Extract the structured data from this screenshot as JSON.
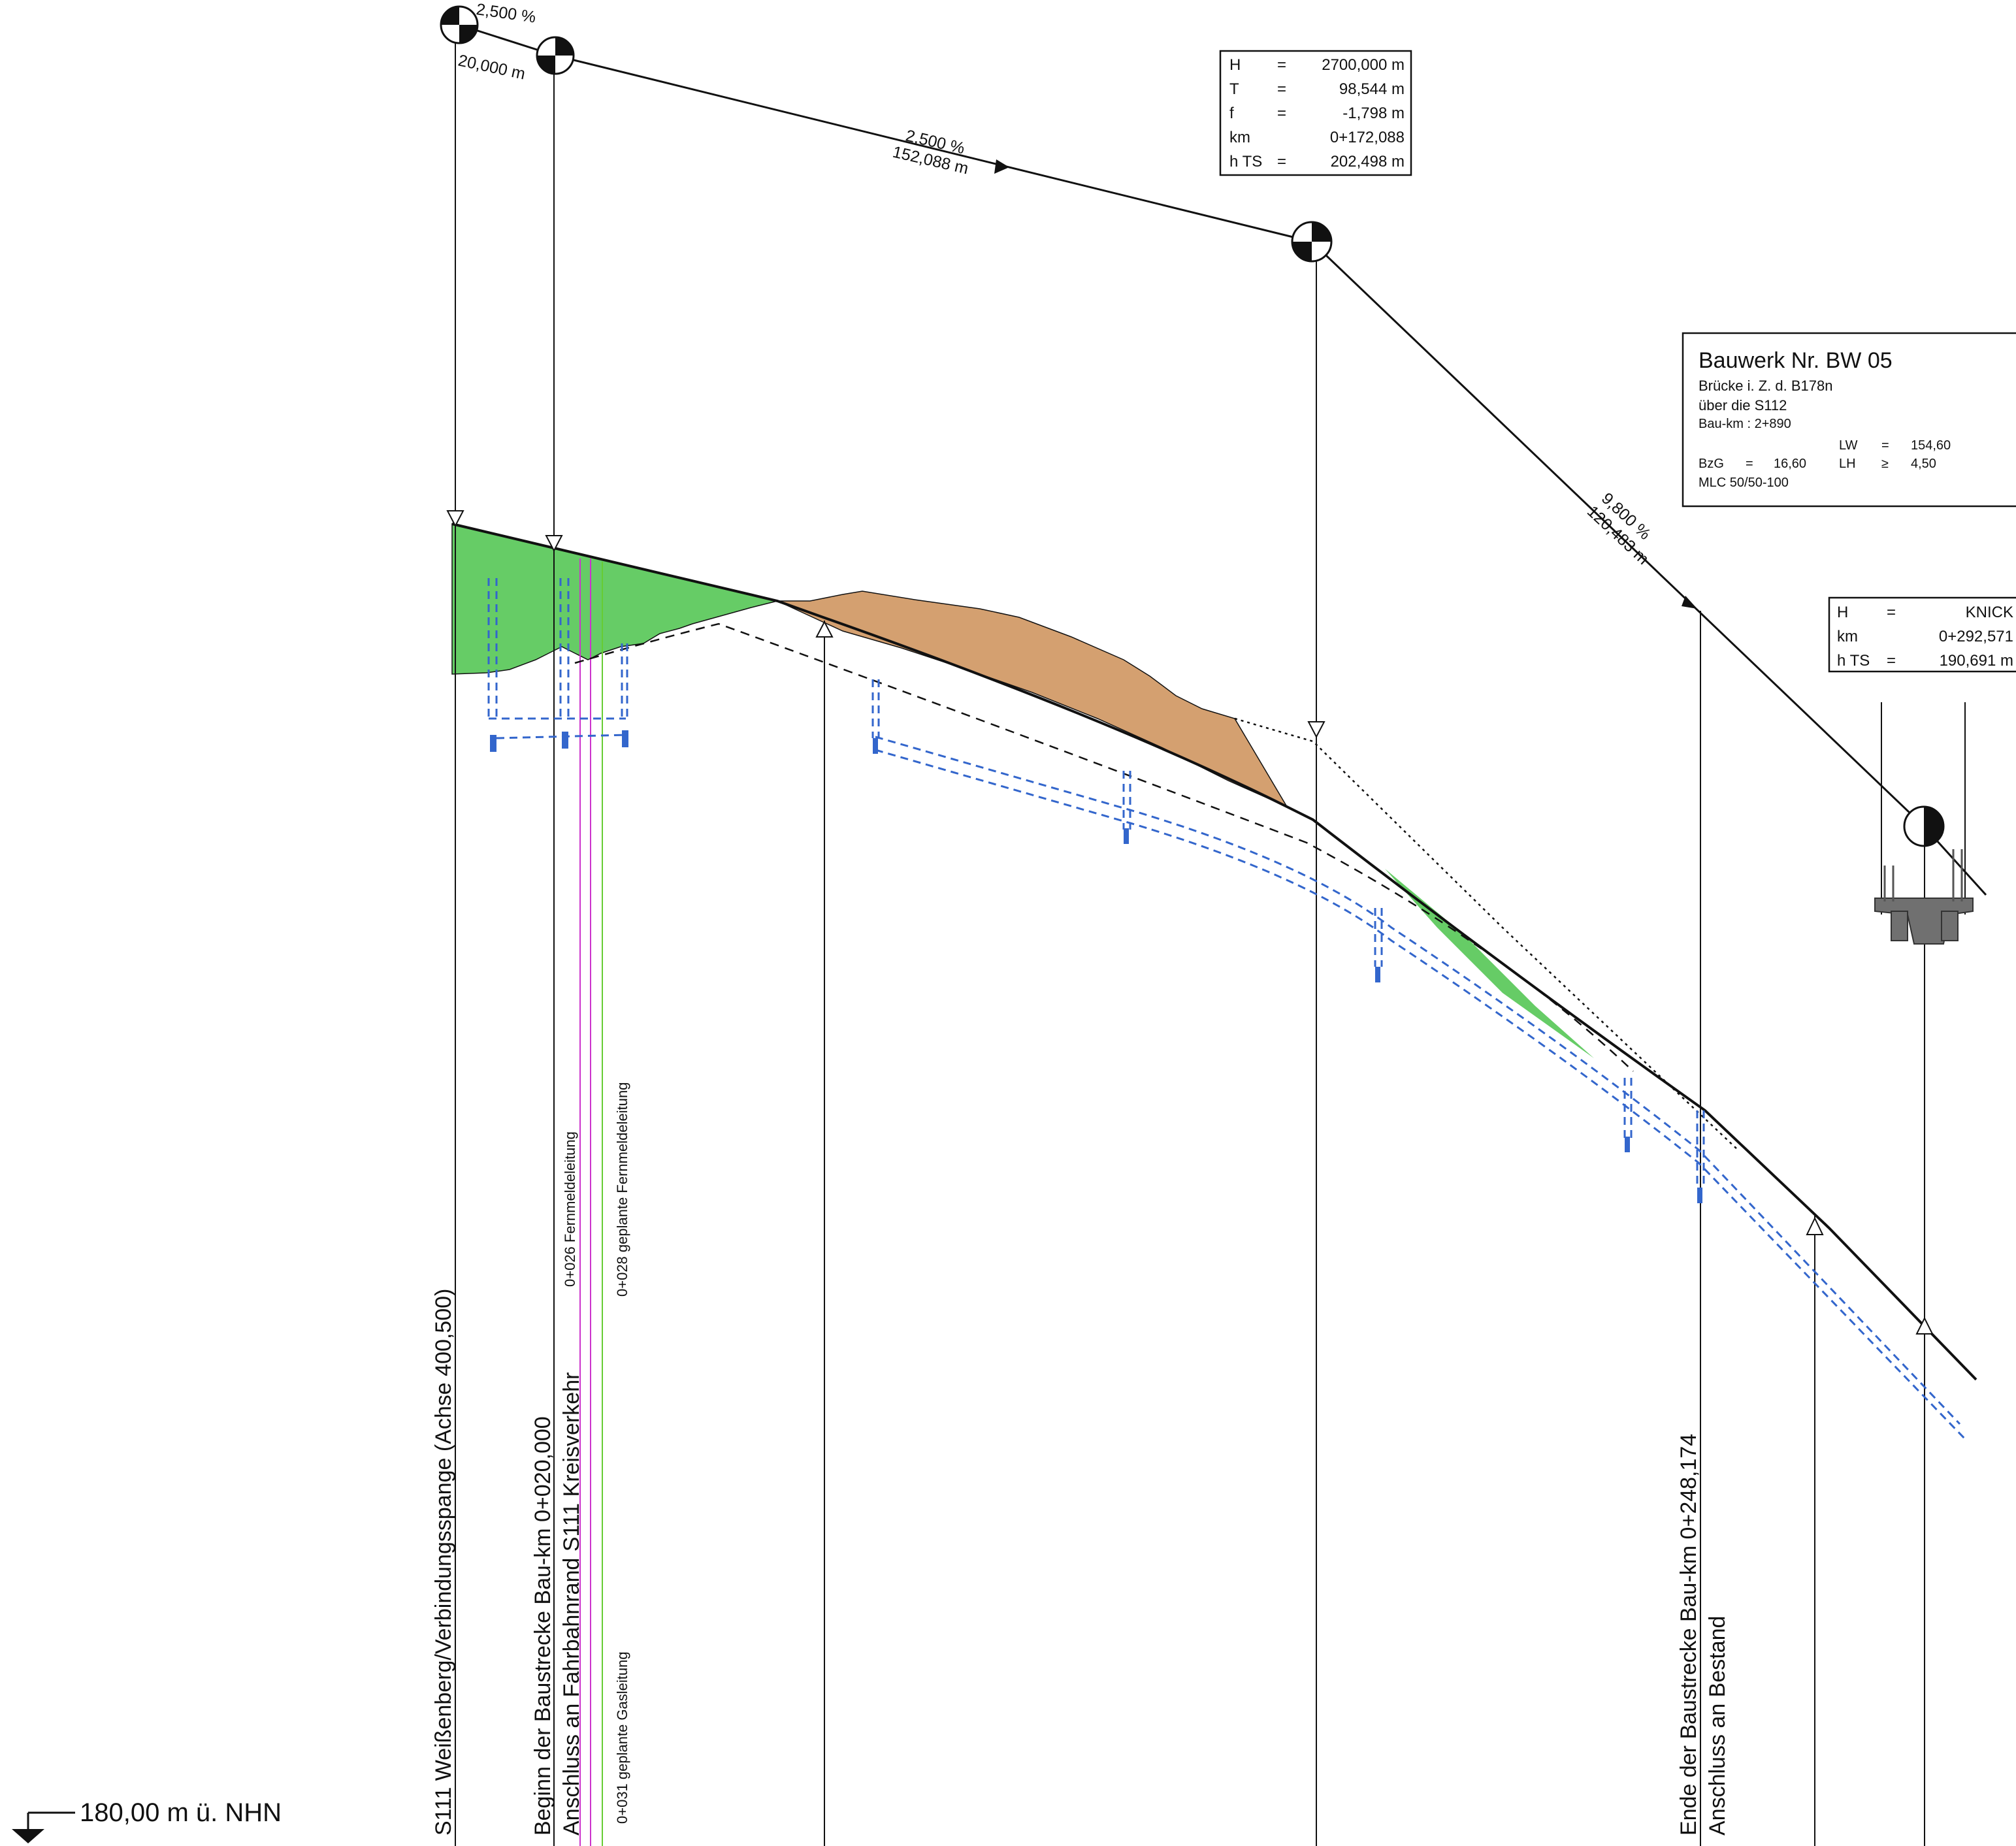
{
  "colors": {
    "fill_green": "#66cc66",
    "fill_brown": "#d4a070",
    "pipe_blue": "#3366cc",
    "gas_green": "#66cc33",
    "telecom_magenta": "#cc33cc",
    "structure_gray": "#707070",
    "line": "#111111"
  },
  "grades": {
    "g1": {
      "percent": "2,500 %",
      "length": "20,000 m"
    },
    "g2": {
      "percent": "2,500 %",
      "length": "152,088 m"
    },
    "g3": {
      "percent": "9,800 %",
      "length": "120,483 m"
    }
  },
  "curve_box": {
    "rows": [
      {
        "key": "H",
        "eq": "=",
        "val": "2700,000 m"
      },
      {
        "key": "T",
        "eq": "=",
        "val": "98,544 m"
      },
      {
        "key": "f",
        "eq": "=",
        "val": "-1,798 m"
      },
      {
        "key": "km",
        "eq": "",
        "val": "0+172,088"
      },
      {
        "key": "h TS",
        "eq": "=",
        "val": "202,498 m"
      }
    ]
  },
  "knick_box": {
    "rows": [
      {
        "key": "H",
        "eq": "=",
        "val": "KNICK"
      },
      {
        "key": "km",
        "eq": "",
        "val": "0+292,571"
      },
      {
        "key": "h TS",
        "eq": "=",
        "val": "190,691 m"
      }
    ]
  },
  "structure_box": {
    "title": "Bauwerk Nr. BW 05",
    "line1": "Brücke i. Z. d. B178n",
    "line2": "über die S112",
    "bau_km": "Bau-km : 2+890",
    "lw_key": "LW",
    "lw_eq": "=",
    "lw_val": "154,60",
    "bzg_key": "BzG",
    "bzg_eq": "=",
    "bzg_val": "16,60",
    "lh_key": "LH",
    "lh_eq": "≥",
    "lh_val": "4,50",
    "mlc": "MLC  50/50-100"
  },
  "vertical_labels": {
    "s111": "S111 Weißenberg/Verbindungsspange (Achse 400,500)",
    "begin": "Beginn der Baustrecke Bau-km 0+020,000",
    "anschluss_kreis": "Anschluss an Fahrbahnrand S111 Kreisverkehr",
    "fernmelde_026": "0+026 Fernmeldeleitung",
    "gas_031": "0+031 geplante Gasleitung",
    "fernmelde_028": "0+028 geplante Fernmeldeleitung",
    "ende": "Ende der Baustrecke Bau-km 0+248,174",
    "anschluss_bestand": "Anschluss an Bestand"
  },
  "datum": {
    "label": "180,00 m ü. NHN"
  }
}
